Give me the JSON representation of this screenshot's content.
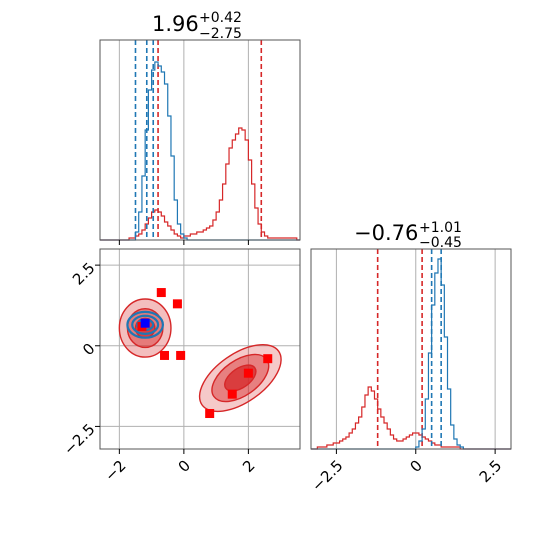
{
  "chart_data": {
    "type": "corner",
    "colors": {
      "red": "#d62728",
      "blue": "#1f77b4",
      "grid": "#b0b0b0",
      "marker": "#ff0000",
      "truth": "#0000ff"
    },
    "grid": true,
    "panels": {
      "hist_x": {
        "title": {
          "value": "1.96",
          "plus": "+0.42",
          "minus": "−2.75"
        },
        "xlim": [
          -2.6,
          3.6
        ],
        "ylim": [
          0,
          1.0
        ],
        "xticks": [
          -2,
          0,
          2
        ],
        "bin_edges_start": -2.6,
        "bin_width": 0.1,
        "series": [
          {
            "name": "",
            "color": "red",
            "counts": [
              0,
              0,
              0,
              0,
              0,
              0,
              0,
              0,
              0,
              0.01,
              0.01,
              0.02,
              0.03,
              0.05,
              0.08,
              0.11,
              0.14,
              0.15,
              0.14,
              0.12,
              0.09,
              0.07,
              0.05,
              0.03,
              0.02,
              0.01,
              0.02,
              0.02,
              0.03,
              0.03,
              0.04,
              0.04,
              0.05,
              0.06,
              0.07,
              0.1,
              0.14,
              0.2,
              0.28,
              0.38,
              0.46,
              0.5,
              0.53,
              0.56,
              0.55,
              0.5,
              0.4,
              0.28,
              0.16,
              0.08,
              0.04,
              0.02,
              0.01,
              0.01,
              0.01,
              0.01,
              0.01,
              0.01,
              0.01,
              0.01,
              0.01,
              0.0
            ],
            "quantile_lines": [
              -0.8,
              2.4
            ]
          },
          {
            "name": "",
            "color": "blue",
            "counts": [
              0,
              0,
              0,
              0,
              0,
              0,
              0,
              0,
              0,
              0,
              0,
              0.04,
              0.14,
              0.32,
              0.55,
              0.75,
              0.85,
              0.89,
              0.87,
              0.84,
              0.78,
              0.62,
              0.42,
              0.2,
              0.08,
              0.03,
              0.01,
              0,
              0,
              0,
              0,
              0,
              0,
              0,
              0,
              0,
              0,
              0,
              0,
              0,
              0,
              0,
              0,
              0,
              0,
              0,
              0,
              0,
              0,
              0,
              0,
              0,
              0,
              0,
              0,
              0,
              0,
              0,
              0,
              0,
              0,
              0
            ],
            "quantile_lines": [
              -1.5,
              -1.15,
              -0.95
            ]
          }
        ]
      },
      "hist_y": {
        "title": {
          "value": "−0.76",
          "plus": "+1.01",
          "minus": "−0.45"
        },
        "xlim": [
          -3.3,
          3.0
        ],
        "ylim": [
          0,
          1.0
        ],
        "xticks": [
          -2.5,
          0.0,
          2.5
        ],
        "bin_edges_start": -3.3,
        "bin_width": 0.1,
        "series": [
          {
            "name": "",
            "color": "red",
            "counts": [
              0,
              0,
              0.01,
              0.01,
              0.01,
              0.02,
              0.02,
              0.03,
              0.03,
              0.04,
              0.05,
              0.06,
              0.08,
              0.1,
              0.13,
              0.16,
              0.21,
              0.27,
              0.31,
              0.29,
              0.25,
              0.2,
              0.16,
              0.13,
              0.1,
              0.07,
              0.05,
              0.04,
              0.04,
              0.05,
              0.06,
              0.07,
              0.08,
              0.08,
              0.07,
              0.06,
              0.05,
              0.04,
              0.03,
              0.02,
              0.02,
              0.01,
              0.01,
              0.01,
              0.01,
              0.01,
              0.01,
              0.0,
              0.0,
              0.0,
              0.0,
              0.0,
              0,
              0,
              0,
              0,
              0,
              0,
              0,
              0,
              0,
              0,
              0
            ],
            "quantile_lines": [
              -1.2,
              0.2
            ]
          },
          {
            "name": "",
            "color": "blue",
            "counts": [
              0,
              0,
              0,
              0,
              0,
              0,
              0,
              0,
              0,
              0,
              0,
              0,
              0,
              0,
              0,
              0,
              0,
              0,
              0,
              0,
              0,
              0,
              0,
              0,
              0,
              0,
              0,
              0,
              0,
              0,
              0,
              0,
              0,
              0.01,
              0.04,
              0.1,
              0.25,
              0.48,
              0.72,
              0.88,
              0.95,
              0.82,
              0.56,
              0.3,
              0.12,
              0.05,
              0.02,
              0.01,
              0,
              0,
              0,
              0,
              0,
              0,
              0,
              0,
              0,
              0,
              0,
              0,
              0,
              0,
              0
            ],
            "quantile_lines": [
              0.5,
              0.8
            ]
          }
        ]
      },
      "scatter": {
        "xlim": [
          -2.6,
          3.6
        ],
        "ylim": [
          -3.2,
          3.0
        ],
        "xticks": [
          -2,
          0,
          2
        ],
        "yticks": [
          -2.5,
          0.0,
          2.5
        ],
        "contours": [
          {
            "color": "red",
            "center": [
              -1.2,
              0.55
            ],
            "levels": [
              {
                "rx": 0.8,
                "ry": 0.9,
                "fill_opacity": 0.3
              },
              {
                "rx": 0.55,
                "ry": 0.6,
                "fill_opacity": 0.45
              },
              {
                "rx": 0.3,
                "ry": 0.3,
                "fill_opacity": 0.7
              }
            ],
            "angle": 0
          },
          {
            "color": "red",
            "center": [
              1.75,
              -1.0
            ],
            "levels": [
              {
                "rx": 1.45,
                "ry": 0.75,
                "fill_opacity": 0.25
              },
              {
                "rx": 1.0,
                "ry": 0.55,
                "fill_opacity": 0.45
              },
              {
                "rx": 0.55,
                "ry": 0.3,
                "fill_opacity": 0.75
              }
            ],
            "angle": -35
          },
          {
            "color": "blue",
            "center": [
              -1.2,
              0.65
            ],
            "levels": [
              {
                "rx": 0.55,
                "ry": 0.4,
                "fill_opacity": 0.0
              },
              {
                "rx": 0.4,
                "ry": 0.28,
                "fill_opacity": 0.0
              },
              {
                "rx": 0.25,
                "ry": 0.16,
                "fill_opacity": 0.0
              }
            ],
            "angle": 0
          }
        ],
        "markers": [
          {
            "x": -0.7,
            "y": 1.65
          },
          {
            "x": -0.2,
            "y": 1.3
          },
          {
            "x": -0.6,
            "y": -0.3
          },
          {
            "x": -0.1,
            "y": -0.3
          },
          {
            "x": -1.3,
            "y": 0.6
          },
          {
            "x": 2.6,
            "y": -0.4
          },
          {
            "x": 2.0,
            "y": -0.85
          },
          {
            "x": 1.5,
            "y": -1.5
          },
          {
            "x": 0.8,
            "y": -2.1
          }
        ],
        "truth": {
          "x": -1.2,
          "y": 0.7
        }
      }
    }
  }
}
